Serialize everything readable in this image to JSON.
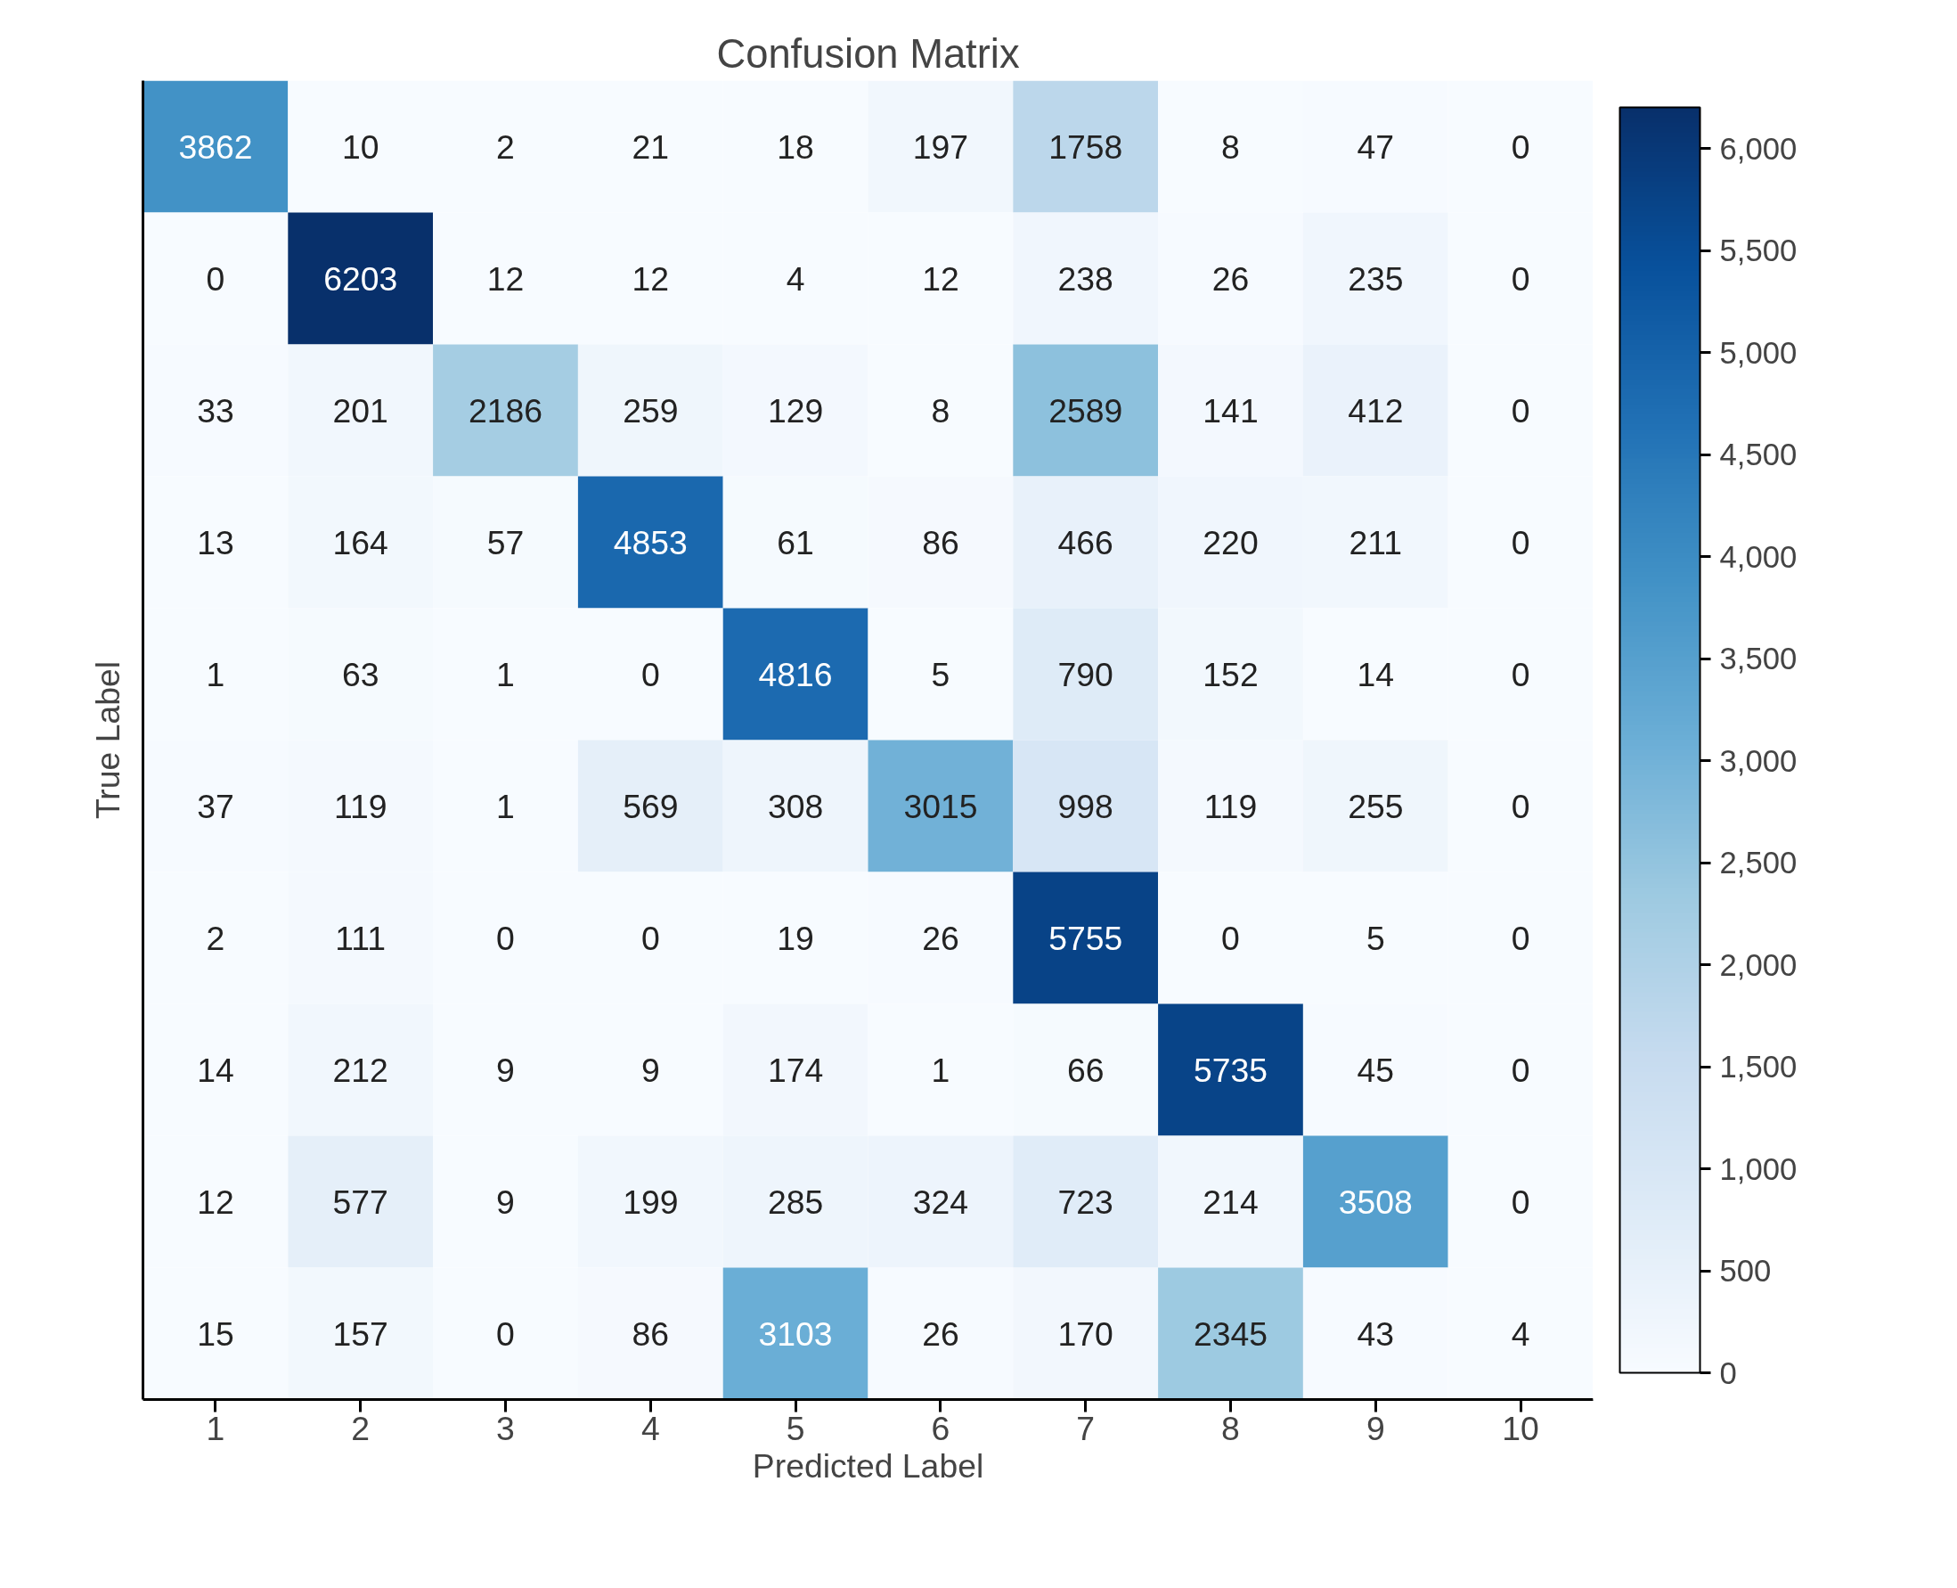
{
  "chart_data": {
    "type": "heatmap",
    "title": "Confusion Matrix",
    "xlabel": "Predicted Label",
    "ylabel": "True Label",
    "categories": [
      "1",
      "2",
      "3",
      "4",
      "5",
      "6",
      "7",
      "8",
      "9",
      "10"
    ],
    "y_categories": [
      null,
      null,
      null,
      null,
      null,
      null,
      null,
      null,
      null,
      null
    ],
    "cells": [
      [
        3862,
        10,
        2,
        21,
        18,
        197,
        1758,
        8,
        47,
        0
      ],
      [
        0,
        6203,
        12,
        12,
        4,
        12,
        238,
        26,
        235,
        0
      ],
      [
        33,
        201,
        2186,
        259,
        129,
        8,
        2589,
        141,
        412,
        0
      ],
      [
        13,
        164,
        57,
        4853,
        61,
        86,
        466,
        220,
        211,
        0
      ],
      [
        1,
        63,
        1,
        0,
        4816,
        5,
        790,
        152,
        14,
        0
      ],
      [
        37,
        119,
        1,
        569,
        308,
        3015,
        998,
        119,
        255,
        0
      ],
      [
        2,
        111,
        0,
        0,
        19,
        26,
        5755,
        0,
        5,
        0
      ],
      [
        14,
        212,
        9,
        9,
        174,
        1,
        66,
        5735,
        45,
        0
      ],
      [
        12,
        577,
        9,
        199,
        285,
        324,
        723,
        214,
        3508,
        0
      ],
      [
        15,
        157,
        0,
        86,
        3103,
        26,
        170,
        2345,
        43,
        4
      ]
    ],
    "clim": [
      0,
      6203
    ],
    "cticks": [
      0,
      500,
      {
        "value": 1000,
        "label": "1,000"
      },
      {
        "value": 1500,
        "label": "1,500"
      },
      {
        "value": 2000,
        "label": "2,000"
      },
      {
        "value": 2500,
        "label": "2,500"
      },
      {
        "value": 3000,
        "label": "3,000"
      },
      {
        "value": 3500,
        "label": "3,500"
      },
      {
        "value": 4000,
        "label": "4,000"
      },
      {
        "value": 4500,
        "label": "4,500"
      },
      {
        "value": 5000,
        "label": "5,000"
      },
      {
        "value": 5500,
        "label": "5,500"
      },
      {
        "value": 6000,
        "label": "6,000"
      }
    ],
    "data_labels": true,
    "grid": false
  }
}
